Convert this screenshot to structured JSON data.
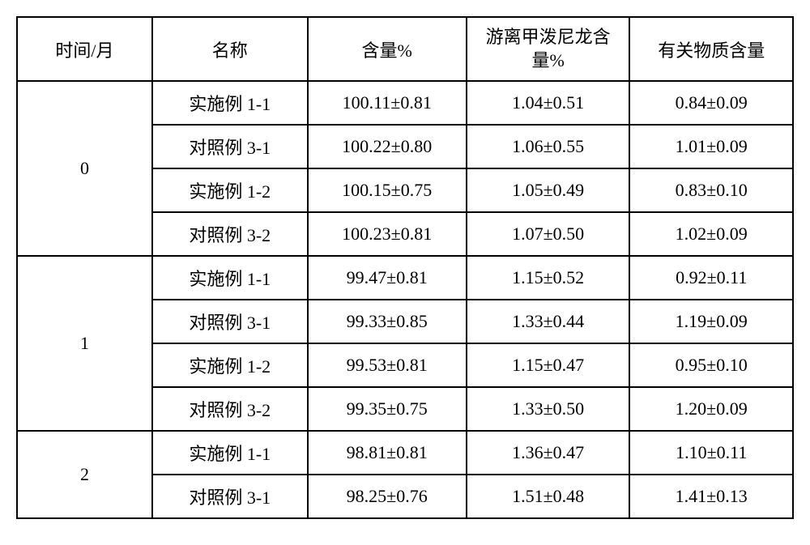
{
  "table": {
    "headers": {
      "time": "时间/月",
      "name": "名称",
      "content": "含量%",
      "free_line1": "游离甲泼尼龙含",
      "free_line2": "量%",
      "related": "有关物质含量"
    },
    "groups": [
      {
        "time": "0",
        "rows": [
          {
            "name": "实施例 1-1",
            "content": "100.11±0.81",
            "free": "1.04±0.51",
            "related": "0.84±0.09"
          },
          {
            "name": "对照例 3-1",
            "content": "100.22±0.80",
            "free": "1.06±0.55",
            "related": "1.01±0.09"
          },
          {
            "name": "实施例 1-2",
            "content": "100.15±0.75",
            "free": "1.05±0.49",
            "related": "0.83±0.10"
          },
          {
            "name": "对照例 3-2",
            "content": "100.23±0.81",
            "free": "1.07±0.50",
            "related": "1.02±0.09"
          }
        ]
      },
      {
        "time": "1",
        "rows": [
          {
            "name": "实施例 1-1",
            "content": "99.47±0.81",
            "free": "1.15±0.52",
            "related": "0.92±0.11"
          },
          {
            "name": "对照例 3-1",
            "content": "99.33±0.85",
            "free": "1.33±0.44",
            "related": "1.19±0.09"
          },
          {
            "name": "实施例 1-2",
            "content": "99.53±0.81",
            "free": "1.15±0.47",
            "related": "0.95±0.10"
          },
          {
            "name": "对照例 3-2",
            "content": "99.35±0.75",
            "free": "1.33±0.50",
            "related": "1.20±0.09"
          }
        ]
      },
      {
        "time": "2",
        "rows": [
          {
            "name": "实施例 1-1",
            "content": "98.81±0.81",
            "free": "1.36±0.47",
            "related": "1.10±0.11"
          },
          {
            "name": "对照例 3-1",
            "content": "98.25±0.76",
            "free": "1.51±0.48",
            "related": "1.41±0.13"
          }
        ]
      }
    ]
  }
}
